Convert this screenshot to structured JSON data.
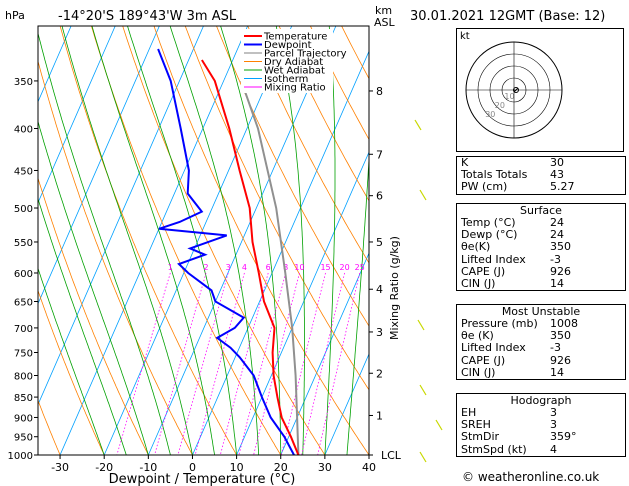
{
  "header": {
    "units": "hPa",
    "location": "-14°20'S  189°43'W  3m  ASL",
    "km_label": "km",
    "asl_label": "ASL",
    "datetime": "30.01.2021  12GMT  (Base: 12)"
  },
  "chart_data": {
    "type": "skew-t",
    "xlabel": "Dewpoint / Temperature (°C)",
    "mixing_ratio_label": "Mixing Ratio (g/kg)",
    "x_range": [
      -35,
      40
    ],
    "x_ticks": [
      -30,
      -20,
      -10,
      0,
      10,
      20,
      30,
      40
    ],
    "pressure_range": [
      300,
      1000
    ],
    "pressure_ticks": [
      350,
      400,
      450,
      500,
      550,
      600,
      650,
      700,
      750,
      800,
      850,
      900,
      950,
      1000
    ],
    "km_ticks": [
      {
        "label": "8",
        "p": 360
      },
      {
        "label": "7",
        "p": 430
      },
      {
        "label": "6",
        "p": 483
      },
      {
        "label": "5",
        "p": 550
      },
      {
        "label": "4",
        "p": 628
      },
      {
        "label": "3",
        "p": 708
      },
      {
        "label": "2",
        "p": 795
      },
      {
        "label": "1",
        "p": 895
      },
      {
        "label": "LCL",
        "p": 1004
      }
    ],
    "mixing_ratio_lines": [
      "1",
      "2",
      "3",
      "4",
      "6",
      "8",
      "10",
      "15",
      "20",
      "25"
    ],
    "legend": [
      "Temperature",
      "Dewpoint",
      "Parcel Trajectory",
      "Dry Adiabat",
      "Wet Adiabat",
      "Isotherm",
      "Mixing Ratio"
    ],
    "legend_colors": [
      "#ff0000",
      "#0000ff",
      "#808080",
      "#ff8000",
      "#00a000",
      "#00a0ff",
      "#ff00ff"
    ],
    "temperature": [
      {
        "p": 1000,
        "t": 24.0
      },
      {
        "p": 950,
        "t": 20.5
      },
      {
        "p": 900,
        "t": 16.5
      },
      {
        "p": 850,
        "t": 13.5
      },
      {
        "p": 800,
        "t": 10.5
      },
      {
        "p": 750,
        "t": 8.0
      },
      {
        "p": 700,
        "t": 6.0
      },
      {
        "p": 650,
        "t": 1.0
      },
      {
        "p": 600,
        "t": -3.0
      },
      {
        "p": 550,
        "t": -7.5
      },
      {
        "p": 500,
        "t": -11.5
      },
      {
        "p": 450,
        "t": -17.5
      },
      {
        "p": 400,
        "t": -24.0
      },
      {
        "p": 350,
        "t": -32.0
      },
      {
        "p": 330,
        "t": -37.0
      }
    ],
    "dewpoint": [
      {
        "p": 1000,
        "t": 23.0
      },
      {
        "p": 950,
        "t": 19.0
      },
      {
        "p": 900,
        "t": 14.0
      },
      {
        "p": 850,
        "t": 10.0
      },
      {
        "p": 800,
        "t": 6.0
      },
      {
        "p": 760,
        "t": 1.0
      },
      {
        "p": 740,
        "t": -2.0
      },
      {
        "p": 720,
        "t": -6.0
      },
      {
        "p": 700,
        "t": -3.0
      },
      {
        "p": 680,
        "t": -2.0
      },
      {
        "p": 650,
        "t": -10.0
      },
      {
        "p": 630,
        "t": -12.0
      },
      {
        "p": 600,
        "t": -19.0
      },
      {
        "p": 585,
        "t": -22.0
      },
      {
        "p": 570,
        "t": -17.0
      },
      {
        "p": 560,
        "t": -21.0
      },
      {
        "p": 540,
        "t": -14.0
      },
      {
        "p": 530,
        "t": -30.0
      },
      {
        "p": 520,
        "t": -26.0
      },
      {
        "p": 505,
        "t": -22.0
      },
      {
        "p": 480,
        "t": -27.0
      },
      {
        "p": 450,
        "t": -29.0
      },
      {
        "p": 400,
        "t": -35.0
      },
      {
        "p": 350,
        "t": -42.0
      },
      {
        "p": 320,
        "t": -48.0
      }
    ],
    "parcel": [
      {
        "p": 1000,
        "t": 24.0
      },
      {
        "p": 900,
        "t": 20.0
      },
      {
        "p": 800,
        "t": 15.5
      },
      {
        "p": 700,
        "t": 10.0
      },
      {
        "p": 600,
        "t": 3.0
      },
      {
        "p": 500,
        "t": -5.5
      },
      {
        "p": 400,
        "t": -17.5
      },
      {
        "p": 350,
        "t": -26.0
      }
    ],
    "hodograph": {
      "label": "kt",
      "rings": [
        "10",
        "20",
        "30",
        "40"
      ]
    }
  },
  "indices": [
    {
      "k": "K",
      "v": "30"
    },
    {
      "k": "Totals Totals",
      "v": "43"
    },
    {
      "k": "PW (cm)",
      "v": "5.27"
    }
  ],
  "surface": {
    "title": "Surface",
    "rows": [
      {
        "k": "Temp (°C)",
        "v": "24"
      },
      {
        "k": "Dewp (°C)",
        "v": "24"
      },
      {
        "k": "θe(K)",
        "v": "350"
      },
      {
        "k": "Lifted Index",
        "v": "-3"
      },
      {
        "k": "CAPE (J)",
        "v": "926"
      },
      {
        "k": "CIN (J)",
        "v": "14"
      }
    ]
  },
  "most_unstable": {
    "title": "Most Unstable",
    "rows": [
      {
        "k": "Pressure (mb)",
        "v": "1008"
      },
      {
        "k": "θe (K)",
        "v": "350"
      },
      {
        "k": "Lifted Index",
        "v": "-3"
      },
      {
        "k": "CAPE (J)",
        "v": "926"
      },
      {
        "k": "CIN (J)",
        "v": "14"
      }
    ]
  },
  "hodograph_table": {
    "title": "Hodograph",
    "rows": [
      {
        "k": "EH",
        "v": "3"
      },
      {
        "k": "SREH",
        "v": "3"
      },
      {
        "k": "StmDir",
        "v": "359°"
      },
      {
        "k": "StmSpd (kt)",
        "v": "4"
      }
    ]
  },
  "copyright": "© weatheronline.co.uk"
}
